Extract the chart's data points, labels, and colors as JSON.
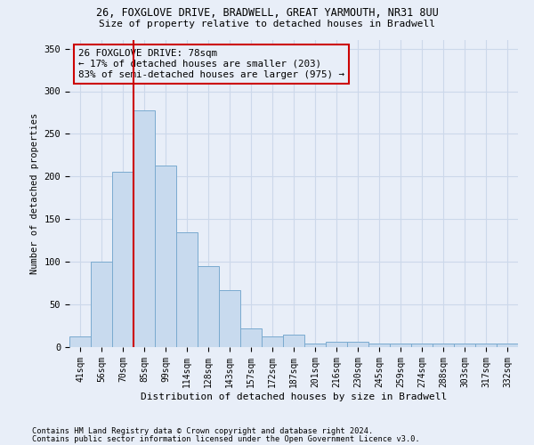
{
  "title1": "26, FOXGLOVE DRIVE, BRADWELL, GREAT YARMOUTH, NR31 8UU",
  "title2": "Size of property relative to detached houses in Bradwell",
  "xlabel": "Distribution of detached houses by size in Bradwell",
  "ylabel": "Number of detached properties",
  "categories": [
    "41sqm",
    "56sqm",
    "70sqm",
    "85sqm",
    "99sqm",
    "114sqm",
    "128sqm",
    "143sqm",
    "157sqm",
    "172sqm",
    "187sqm",
    "201sqm",
    "216sqm",
    "230sqm",
    "245sqm",
    "259sqm",
    "274sqm",
    "288sqm",
    "303sqm",
    "317sqm",
    "332sqm"
  ],
  "bar_values": [
    13,
    100,
    206,
    278,
    213,
    135,
    95,
    67,
    22,
    13,
    15,
    4,
    6,
    6,
    4,
    4,
    4,
    4,
    4,
    4,
    4
  ],
  "bar_color": "#c8daee",
  "bar_edge_color": "#7aaacf",
  "grid_color": "#ccd8ea",
  "annotation_box_text": "26 FOXGLOVE DRIVE: 78sqm\n← 17% of detached houses are smaller (203)\n83% of semi-detached houses are larger (975) →",
  "vline_color": "#cc0000",
  "footer1": "Contains HM Land Registry data © Crown copyright and database right 2024.",
  "footer2": "Contains public sector information licensed under the Open Government Licence v3.0.",
  "bg_color": "#e8eef8",
  "ylim": [
    0,
    360
  ],
  "yticks": [
    0,
    50,
    100,
    150,
    200,
    250,
    300,
    350
  ]
}
